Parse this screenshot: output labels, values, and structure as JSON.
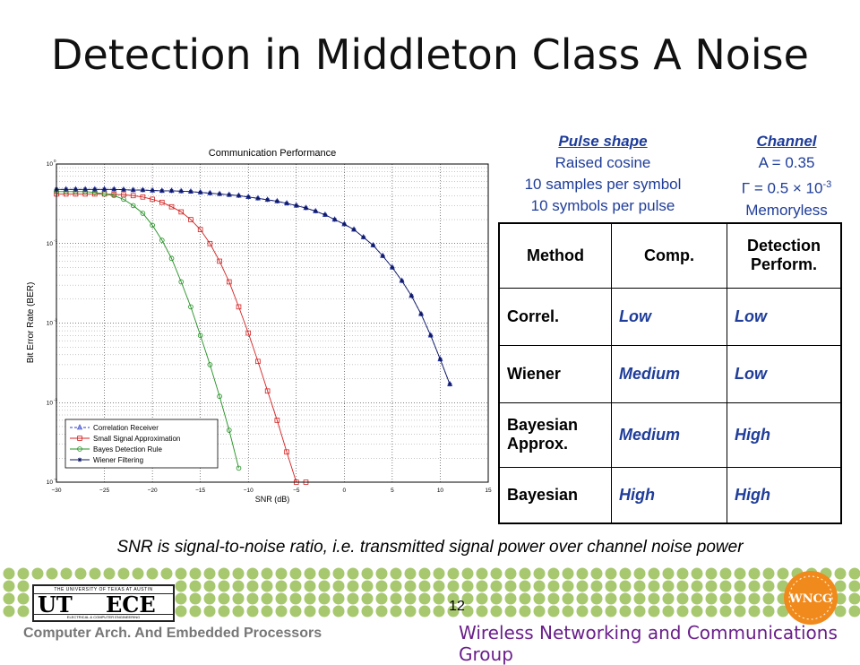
{
  "title": "Detection in Middleton Class A Noise",
  "pulse": {
    "header": "Pulse shape",
    "lines": [
      "Raised cosine",
      "10 samples per symbol",
      "10 symbols per pulse"
    ]
  },
  "channel": {
    "header": "Channel",
    "a_line": "A = 0.35",
    "gamma_symbol": "Γ",
    "gamma_text": " = 0.5 × 10",
    "gamma_exp": "-3",
    "memory": "Memoryless"
  },
  "table": {
    "headers": [
      "Method",
      "Comp.",
      "Detection Perform."
    ],
    "rows": [
      [
        "Correl.",
        "Low",
        "Low"
      ],
      [
        "Wiener",
        "Medium",
        "Low"
      ],
      [
        "Bayesian Approx.",
        "Medium",
        "High"
      ],
      [
        "Bayesian",
        "High",
        "High"
      ]
    ]
  },
  "note": "SNR is signal-to-noise ratio, i.e. transmitted signal power over channel noise power",
  "footer": {
    "left": "Computer Arch. And Embedded Processors",
    "right": "Wireless Networking and Communications Group",
    "page": "12",
    "ut_top": "THE UNIVERSITY OF TEXAS AT AUSTIN",
    "ut_left": "UT",
    "ut_right": "ECE",
    "ut_bottom": "ELECTRICAL & COMPUTER ENGINEERING",
    "wncc": "WNCG"
  },
  "colors": {
    "info_blue": "#1f3d99",
    "footer_purple": "#6a1f8a",
    "dot_green": "#a8c870",
    "wncc_orange": "#f08a1c"
  },
  "chart_data": {
    "type": "line",
    "title": "Communication Performance",
    "xlabel": "SNR (dB)",
    "ylabel": "Bit Error Rate (BER)",
    "xlim": [
      -30,
      15
    ],
    "yscale": "log",
    "ylim": [
      0.0001,
      1
    ],
    "xticks": [
      -30,
      -25,
      -20,
      -15,
      -10,
      -5,
      0,
      5,
      10,
      15
    ],
    "yticks": [
      {
        "value": 1,
        "exp": "0"
      },
      {
        "value": 0.1,
        "exp": "-1"
      },
      {
        "value": 0.01,
        "exp": "-2"
      },
      {
        "value": 0.001,
        "exp": "-3"
      },
      {
        "value": 0.0001,
        "exp": "-4"
      }
    ],
    "grid": true,
    "legend": "bottom-left",
    "series": [
      {
        "name": "Correlation Receiver",
        "color": "#2b3fc9",
        "marker": "triangle",
        "dash": true,
        "points": [
          [
            -30,
            0.48
          ],
          [
            -29,
            0.48
          ],
          [
            -28,
            0.48
          ],
          [
            -27,
            0.48
          ],
          [
            -26,
            0.48
          ],
          [
            -25,
            0.48
          ],
          [
            -24,
            0.48
          ],
          [
            -23,
            0.475
          ],
          [
            -22,
            0.47
          ],
          [
            -21,
            0.47
          ],
          [
            -20,
            0.465
          ],
          [
            -19,
            0.46
          ],
          [
            -18,
            0.46
          ],
          [
            -17,
            0.455
          ],
          [
            -16,
            0.45
          ],
          [
            -15,
            0.44
          ],
          [
            -14,
            0.43
          ],
          [
            -13,
            0.42
          ],
          [
            -12,
            0.41
          ],
          [
            -11,
            0.4
          ],
          [
            -10,
            0.385
          ],
          [
            -9,
            0.37
          ],
          [
            -8,
            0.355
          ],
          [
            -7,
            0.34
          ],
          [
            -6,
            0.32
          ],
          [
            -5,
            0.3
          ],
          [
            -4,
            0.28
          ],
          [
            -3,
            0.255
          ],
          [
            -2,
            0.23
          ],
          [
            -1,
            0.2
          ],
          [
            0,
            0.175
          ],
          [
            1,
            0.15
          ],
          [
            2,
            0.12
          ],
          [
            3,
            0.095
          ],
          [
            4,
            0.07
          ],
          [
            5,
            0.05
          ],
          [
            6,
            0.034
          ],
          [
            7,
            0.022
          ],
          [
            8,
            0.013
          ],
          [
            9,
            0.007
          ],
          [
            10,
            0.0035
          ],
          [
            11,
            0.0017
          ]
        ]
      },
      {
        "name": "Small Signal Approximation",
        "color": "#d42020",
        "marker": "square",
        "dash": false,
        "points": [
          [
            -30,
            0.42
          ],
          [
            -29,
            0.42
          ],
          [
            -28,
            0.42
          ],
          [
            -27,
            0.42
          ],
          [
            -26,
            0.42
          ],
          [
            -25,
            0.42
          ],
          [
            -24,
            0.415
          ],
          [
            -23,
            0.41
          ],
          [
            -22,
            0.4
          ],
          [
            -21,
            0.385
          ],
          [
            -20,
            0.36
          ],
          [
            -19,
            0.33
          ],
          [
            -18,
            0.29
          ],
          [
            -17,
            0.25
          ],
          [
            -16,
            0.2
          ],
          [
            -15,
            0.15
          ],
          [
            -14,
            0.1
          ],
          [
            -13,
            0.06
          ],
          [
            -12,
            0.033
          ],
          [
            -11,
            0.016
          ],
          [
            -10,
            0.0075
          ],
          [
            -9,
            0.0033
          ],
          [
            -8,
            0.0014
          ],
          [
            -7,
            0.0006
          ],
          [
            -6,
            0.00024
          ],
          [
            -5,
            0.0001
          ],
          [
            -4,
            0.0001
          ]
        ]
      },
      {
        "name": "Bayes Detection Rule",
        "color": "#1f8f1f",
        "marker": "circle",
        "dash": false,
        "points": [
          [
            -30,
            0.45
          ],
          [
            -29,
            0.45
          ],
          [
            -28,
            0.45
          ],
          [
            -27,
            0.45
          ],
          [
            -26,
            0.44
          ],
          [
            -25,
            0.42
          ],
          [
            -24,
            0.4
          ],
          [
            -23,
            0.36
          ],
          [
            -22,
            0.3
          ],
          [
            -21,
            0.24
          ],
          [
            -20,
            0.17
          ],
          [
            -19,
            0.11
          ],
          [
            -18,
            0.065
          ],
          [
            -17,
            0.033
          ],
          [
            -16,
            0.016
          ],
          [
            -15,
            0.007
          ],
          [
            -14,
            0.003
          ],
          [
            -13,
            0.0012
          ],
          [
            -12,
            0.00045
          ],
          [
            -11,
            0.00015
          ]
        ]
      },
      {
        "name": "Wiener Filtering",
        "color": "#0d1660",
        "marker": "star",
        "dash": false,
        "points": [
          [
            -30,
            0.48
          ],
          [
            -29,
            0.48
          ],
          [
            -28,
            0.48
          ],
          [
            -27,
            0.48
          ],
          [
            -26,
            0.48
          ],
          [
            -25,
            0.48
          ],
          [
            -24,
            0.48
          ],
          [
            -23,
            0.475
          ],
          [
            -22,
            0.47
          ],
          [
            -21,
            0.47
          ],
          [
            -20,
            0.465
          ],
          [
            -19,
            0.46
          ],
          [
            -18,
            0.46
          ],
          [
            -17,
            0.455
          ],
          [
            -16,
            0.45
          ],
          [
            -15,
            0.44
          ],
          [
            -14,
            0.43
          ],
          [
            -13,
            0.42
          ],
          [
            -12,
            0.41
          ],
          [
            -11,
            0.4
          ],
          [
            -10,
            0.385
          ],
          [
            -9,
            0.37
          ],
          [
            -8,
            0.355
          ],
          [
            -7,
            0.34
          ],
          [
            -6,
            0.32
          ],
          [
            -5,
            0.3
          ],
          [
            -4,
            0.28
          ],
          [
            -3,
            0.255
          ],
          [
            -2,
            0.23
          ],
          [
            -1,
            0.2
          ],
          [
            0,
            0.175
          ],
          [
            1,
            0.15
          ],
          [
            2,
            0.12
          ],
          [
            3,
            0.095
          ],
          [
            4,
            0.07
          ],
          [
            5,
            0.05
          ],
          [
            6,
            0.034
          ],
          [
            7,
            0.022
          ],
          [
            8,
            0.013
          ],
          [
            9,
            0.007
          ],
          [
            10,
            0.0035
          ],
          [
            11,
            0.0017
          ]
        ]
      }
    ]
  }
}
